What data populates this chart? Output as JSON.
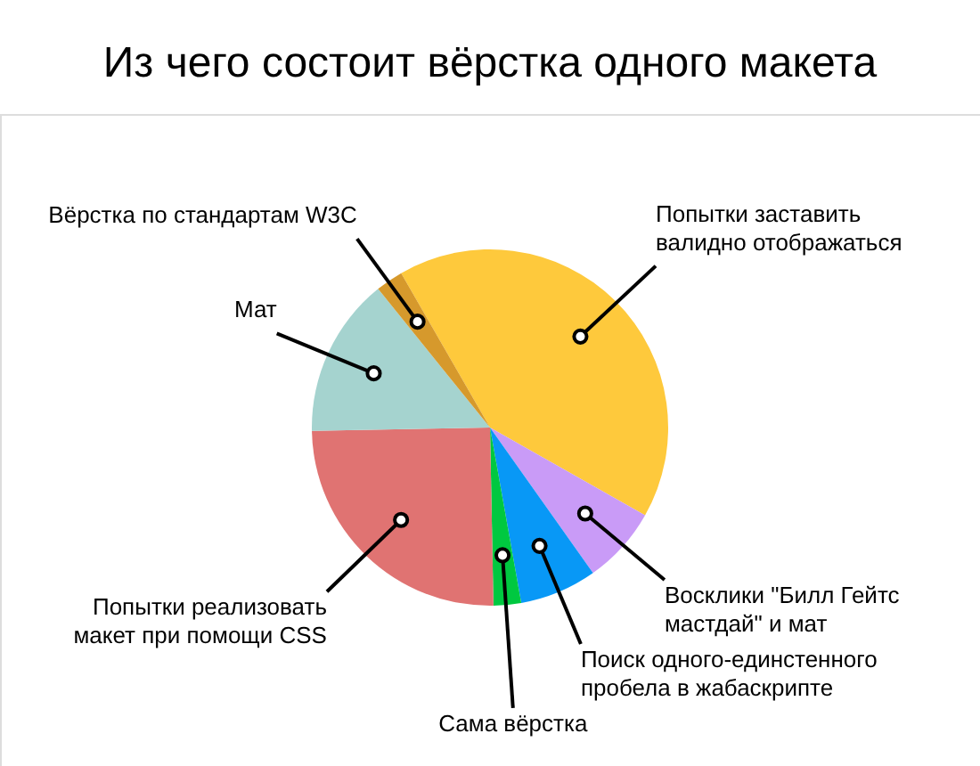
{
  "chart_data": {
    "type": "pie",
    "title": "Из чего состоит вёрстка одного макета",
    "categories": [
      "Попытки заставить валидно отображаться",
      "Восклики \"Билл Гейтс мастдай\" и мат",
      "Поиск одного-единстенного пробела в жабаскрипте",
      "Сама вёрстка",
      "Попытки реализовать макет при помощи CSS",
      "Мат",
      "Вёрстка по стандартам W3C"
    ],
    "values": [
      41.5,
      7,
      7,
      2.5,
      25,
      14.5,
      2.5
    ],
    "colors": [
      "#fec93c",
      "#c99bf7",
      "#0898f6",
      "#00c840",
      "#e07372",
      "#a5d3cf",
      "#d6992c"
    ]
  }
}
